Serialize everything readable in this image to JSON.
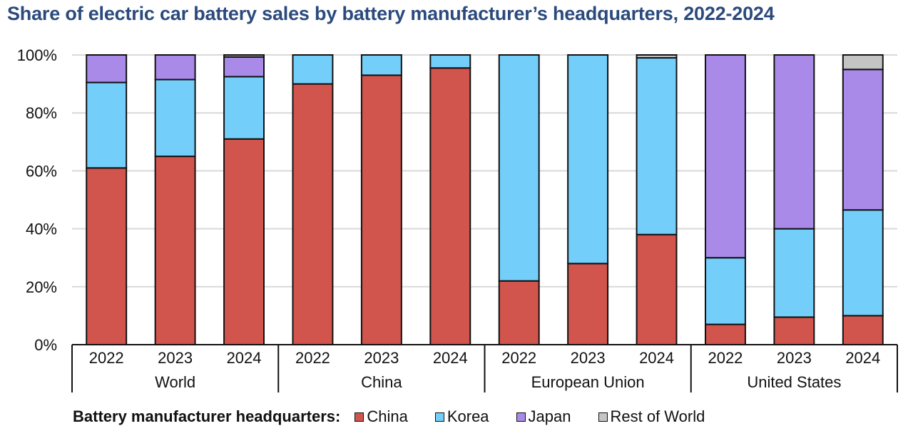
{
  "chart_data": {
    "type": "bar",
    "stacked": true,
    "title": "Share of electric car battery sales by battery manufacturer’s headquarters, 2022-2024",
    "xlabel": "",
    "ylabel": "",
    "ylim": [
      0,
      100
    ],
    "yticks": [
      "0%",
      "20%",
      "40%",
      "60%",
      "80%",
      "100%"
    ],
    "ytick_values": [
      0,
      20,
      40,
      60,
      80,
      100
    ],
    "grid": true,
    "groups": [
      {
        "name": "World",
        "categories": [
          "2022",
          "2023",
          "2024"
        ]
      },
      {
        "name": "China",
        "categories": [
          "2022",
          "2023",
          "2024"
        ]
      },
      {
        "name": "European Union",
        "categories": [
          "2022",
          "2023",
          "2024"
        ]
      },
      {
        "name": "United States",
        "categories": [
          "2022",
          "2023",
          "2024"
        ]
      }
    ],
    "series": [
      {
        "name": "China",
        "color": "#d1554d",
        "values": [
          61,
          65,
          71,
          90,
          93,
          95.5,
          22,
          28,
          38,
          7,
          9.5,
          10
        ]
      },
      {
        "name": "Korea",
        "color": "#73cffa",
        "values": [
          29.5,
          26.5,
          21.5,
          10,
          7,
          4.5,
          78,
          72,
          61,
          23,
          30.5,
          36.5
        ]
      },
      {
        "name": "Japan",
        "color": "#a98ae8",
        "values": [
          9.5,
          8.5,
          6.8,
          0,
          0,
          0,
          0,
          0,
          0,
          70,
          60,
          48.5
        ]
      },
      {
        "name": "Rest of World",
        "color": "#c4c4c4",
        "values": [
          0,
          0,
          0.7,
          0,
          0,
          0,
          0,
          0,
          1,
          0,
          0,
          5
        ]
      }
    ],
    "legend_title": "Battery manufacturer headquarters:",
    "legend_position": "bottom"
  }
}
